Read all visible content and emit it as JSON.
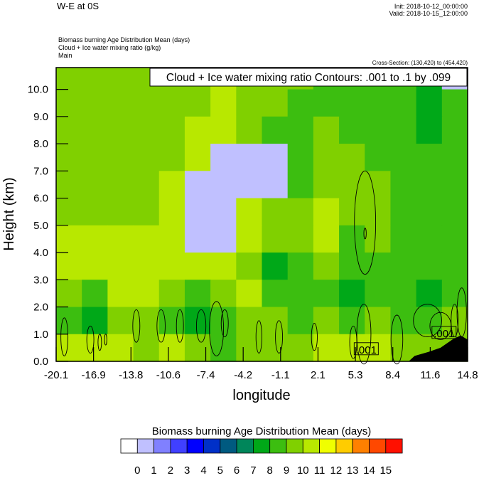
{
  "header": {
    "title": "W-E at 0S",
    "init": "Init: 2018-10-12_00:00:00",
    "valid": "Valid: 2018-10-15_12:00:00",
    "subtitles": [
      "Biomass burning Age Distribution Mean   (days)",
      "Cloud + Ice water mixing ratio   (g/kg)",
      "Main"
    ],
    "cross_section": "Cross-Section: (130,420) to (454,420)"
  },
  "chart_data": {
    "type": "heatmap",
    "xlabel": "longitude",
    "ylabel": "Height (km)",
    "xlim": [
      -20.1,
      14.8
    ],
    "ylim": [
      0,
      10.8
    ],
    "x_ticks": [
      "-20.1",
      "-16.9",
      "-13.8",
      "-10.6",
      "-7.4",
      "-4.2",
      "-1.1",
      "2.1",
      "5.3",
      "8.4",
      "11.6",
      "14.8"
    ],
    "y_ticks": [
      "0.0",
      "1.0",
      "2.0",
      "3.0",
      "4.0",
      "5.0",
      "6.0",
      "7.0",
      "8.0",
      "9.0",
      "10.0"
    ],
    "contour_legend": "Cloud + Ice water mixing ratio Contours: .001 to .1 by .099",
    "grid_heights_km_top_to_bottom": [
      [
        10,
        10.8
      ],
      [
        9,
        10
      ],
      [
        8,
        9
      ],
      [
        7,
        8
      ],
      [
        6,
        7
      ],
      [
        5,
        6
      ],
      [
        4,
        5
      ],
      [
        3,
        4
      ],
      [
        2,
        3
      ],
      [
        1,
        2
      ],
      [
        0,
        1
      ]
    ],
    "field_days": [
      [
        9.5,
        9.5,
        9.5,
        9.5,
        9.5,
        9.5,
        10.5,
        9.5,
        9.5,
        9.5,
        8.5,
        8.5,
        8.5,
        8.5,
        7.5,
        0.5
      ],
      [
        9.5,
        9.5,
        9.5,
        9.5,
        9.5,
        9.5,
        10.5,
        9.5,
        9.5,
        8.5,
        8.5,
        8.5,
        8.5,
        8.5,
        7.5,
        8.5
      ],
      [
        9.5,
        9.5,
        9.5,
        9.5,
        9.5,
        10.5,
        10.5,
        9.5,
        8.5,
        8.5,
        9.5,
        8.5,
        8.5,
        8.5,
        7.5,
        8.5
      ],
      [
        9.5,
        9.5,
        9.5,
        9.5,
        9.5,
        10.5,
        0.5,
        0.5,
        0.5,
        8.5,
        9.5,
        9.5,
        8.5,
        8.5,
        8.5,
        8.5
      ],
      [
        9.5,
        9.5,
        9.5,
        9.5,
        10.5,
        0.5,
        0.5,
        0.5,
        0.5,
        8.5,
        9.5,
        9.5,
        9.5,
        8.5,
        8.5,
        8.5
      ],
      [
        9.5,
        9.5,
        9.5,
        9.5,
        10.5,
        0.5,
        0.5,
        10.5,
        9.5,
        9.5,
        10.5,
        9.5,
        9.5,
        8.5,
        8.5,
        8.5
      ],
      [
        10.5,
        10.5,
        10.5,
        10.5,
        10.5,
        0.5,
        0.5,
        10.5,
        9.5,
        9.5,
        10.5,
        8.5,
        9.5,
        8.5,
        8.5,
        8.5
      ],
      [
        10.5,
        10.5,
        10.5,
        10.5,
        10.5,
        10.5,
        10.5,
        9.5,
        7.5,
        8.5,
        9.5,
        8.5,
        8.5,
        8.5,
        8.5,
        8.5
      ],
      [
        9.5,
        8.5,
        10.5,
        10.5,
        9.5,
        8.5,
        9.5,
        10.5,
        8.5,
        8.5,
        8.5,
        7.5,
        8.5,
        8.5,
        7.5,
        8.5
      ],
      [
        8.5,
        7.5,
        9.5,
        9.5,
        8.5,
        7.5,
        8.5,
        9.5,
        9.5,
        8.5,
        9.5,
        8.5,
        9.5,
        8.5,
        8.5,
        9.5
      ],
      [
        10.5,
        10.5,
        10.5,
        9.5,
        10.5,
        9.5,
        8.5,
        9.5,
        9.5,
        9.5,
        10.5,
        10.5,
        10.5,
        9.5,
        9.5,
        9.5
      ]
    ],
    "contours_lon_height_rlon_rheight": [
      [
        -19.4,
        0.9,
        0.3,
        0.7
      ],
      [
        -17.2,
        0.8,
        0.3,
        0.5
      ],
      [
        -16.4,
        0.7,
        0.15,
        0.3
      ],
      [
        -15.9,
        0.8,
        0.1,
        0.2
      ],
      [
        -13.3,
        1.3,
        0.3,
        0.6
      ],
      [
        -11.2,
        1.3,
        0.35,
        0.6
      ],
      [
        -9.6,
        1.3,
        0.3,
        0.6
      ],
      [
        -7.8,
        1.3,
        0.4,
        0.6
      ],
      [
        -6.5,
        1.2,
        0.6,
        1.0
      ],
      [
        -5.8,
        1.4,
        0.3,
        0.5
      ],
      [
        -2.9,
        0.9,
        0.25,
        0.6
      ],
      [
        -1.2,
        0.9,
        0.3,
        0.6
      ],
      [
        1.8,
        0.9,
        0.25,
        0.5
      ],
      [
        5.1,
        0.7,
        0.3,
        0.6
      ],
      [
        6.0,
        1.0,
        0.6,
        1.1
      ],
      [
        6.1,
        5.1,
        0.9,
        1.9
      ],
      [
        6.1,
        4.7,
        0.1,
        0.2
      ],
      [
        8.8,
        0.8,
        0.5,
        0.9
      ],
      [
        11.4,
        1.5,
        1.2,
        0.6
      ],
      [
        12.5,
        1.3,
        0.9,
        0.5
      ],
      [
        14.3,
        1.8,
        0.4,
        0.9
      ],
      [
        13.7,
        1.5,
        0.3,
        0.6
      ]
    ],
    "contour_labels": [
      {
        "text": ".001",
        "lon": 6.2,
        "height": 0.45
      },
      {
        "text": ".001",
        "lon": 12.8,
        "height": 1.05
      }
    ],
    "terrain_lon_height": [
      [
        9.8,
        0
      ],
      [
        10.3,
        0.2
      ],
      [
        11.5,
        0.35
      ],
      [
        12.5,
        0.5
      ],
      [
        13.5,
        0.8
      ],
      [
        14.2,
        0.95
      ],
      [
        14.8,
        0.8
      ],
      [
        14.8,
        0
      ]
    ],
    "colorbar": {
      "title": "Biomass burning Age Distribution Mean  (days)",
      "labels": [
        "0",
        "1",
        "2",
        "3",
        "4",
        "5",
        "6",
        "7",
        "8",
        "9",
        "10",
        "11",
        "12",
        "13",
        "14",
        "15"
      ],
      "colors": [
        "#ffffff",
        "#c0c0ff",
        "#8080ff",
        "#4040ff",
        "#0000ff",
        "#0030c8",
        "#005a80",
        "#00865a",
        "#00a818",
        "#3cbe10",
        "#80d000",
        "#b8e800",
        "#f0ff00",
        "#ffcc00",
        "#ff8000",
        "#ff4800",
        "#ff1000"
      ]
    }
  }
}
